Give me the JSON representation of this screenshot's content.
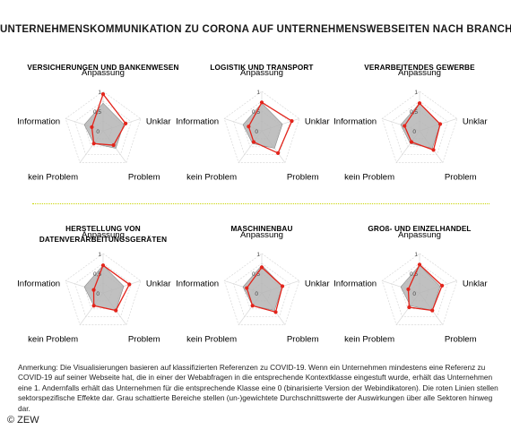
{
  "title": "UNTERNEHMENSKOMMUNIKATION ZU CORONA AUF UNTERNEHMENSWEBSEITEN NACH BRANCHE",
  "axes": [
    "Anpassung",
    "Unklar",
    "Problem",
    "kein Problem",
    "Information"
  ],
  "ticks": [
    "0",
    "0,5",
    "1"
  ],
  "colors": {
    "sector": "#e3241b",
    "average_fill": "#b5b5b5",
    "grid": "#d8d8d8",
    "divider": "#c8d400"
  },
  "chart_data": [
    {
      "type": "radar",
      "title_lines": [
        "VERSICHERUNGEN UND BANKENWESEN"
      ],
      "axes": [
        "Anpassung",
        "Unklar",
        "Problem",
        "kein Problem",
        "Information"
      ],
      "range": [
        0,
        1
      ],
      "series": [
        {
          "role": "sector",
          "values": [
            0.93,
            0.6,
            0.45,
            0.4,
            0.3
          ]
        },
        {
          "role": "average",
          "values": [
            0.7,
            0.55,
            0.55,
            0.4,
            0.5
          ]
        }
      ]
    },
    {
      "type": "radar",
      "title_lines": [
        "LOGISTIK UND TRANSPORT"
      ],
      "axes": [
        "Anpassung",
        "Unklar",
        "Problem",
        "kein Problem",
        "Information"
      ],
      "range": [
        0,
        1
      ],
      "series": [
        {
          "role": "sector",
          "values": [
            0.72,
            0.8,
            0.7,
            0.35,
            0.35
          ]
        },
        {
          "role": "average",
          "values": [
            0.7,
            0.55,
            0.55,
            0.4,
            0.5
          ]
        }
      ]
    },
    {
      "type": "radar",
      "title_lines": [
        "VERARBEITENDES GEWERBE"
      ],
      "axes": [
        "Anpassung",
        "Unklar",
        "Problem",
        "kein Problem",
        "Information"
      ],
      "range": [
        0,
        1
      ],
      "series": [
        {
          "role": "sector",
          "values": [
            0.7,
            0.55,
            0.6,
            0.35,
            0.4
          ]
        },
        {
          "role": "average",
          "values": [
            0.7,
            0.55,
            0.55,
            0.4,
            0.5
          ]
        }
      ]
    },
    {
      "type": "radar",
      "title_lines": [
        "HERSTELLUNG VON",
        "DATENVERARBEITUNGSGERÄTEN"
      ],
      "axes": [
        "Anpassung",
        "Unklar",
        "Problem",
        "kein Problem",
        "Information"
      ],
      "range": [
        0,
        1
      ],
      "series": [
        {
          "role": "sector",
          "values": [
            0.7,
            0.7,
            0.55,
            0.4,
            0.25
          ]
        },
        {
          "role": "average",
          "values": [
            0.7,
            0.55,
            0.55,
            0.4,
            0.5
          ]
        }
      ]
    },
    {
      "type": "radar",
      "title_lines": [
        "MASCHINENBAU"
      ],
      "axes": [
        "Anpassung",
        "Unklar",
        "Problem",
        "kein Problem",
        "Information"
      ],
      "range": [
        0,
        1
      ],
      "series": [
        {
          "role": "sector",
          "values": [
            0.65,
            0.55,
            0.6,
            0.4,
            0.4
          ]
        },
        {
          "role": "average",
          "values": [
            0.7,
            0.55,
            0.55,
            0.4,
            0.5
          ]
        }
      ]
    },
    {
      "type": "radar",
      "title_lines": [
        "GROß- UND EINZELHANDEL"
      ],
      "axes": [
        "Anpassung",
        "Unklar",
        "Problem",
        "kein Problem",
        "Information"
      ],
      "range": [
        0,
        1
      ],
      "series": [
        {
          "role": "sector",
          "values": [
            0.72,
            0.6,
            0.55,
            0.45,
            0.3
          ]
        },
        {
          "role": "average",
          "values": [
            0.7,
            0.55,
            0.55,
            0.4,
            0.5
          ]
        }
      ]
    }
  ],
  "note": "Anmerkung: Die Visualisierungen basieren auf klassifizierten Referenzen zu COVID-19. Wenn ein Unternehmen mindestens eine Referenz zu COVID-19 auf seiner Webseite hat, die in einer der Webabfragen in die entsprechende Kontextklasse eingestuft wurde, erhält das Unternehmen eine 1. Andernfalls erhält das Unternehmen für die entsprechende Klasse eine 0 (binarisierte Version der Webindikatoren). Die roten Linien stellen sektorspezifische Effekte dar. Grau schattierte Bereiche stellen (un-)gewichtete Durchschnittswerte der Auswirkungen über alle Sektoren hinweg dar.",
  "copyright": "© ZEW"
}
